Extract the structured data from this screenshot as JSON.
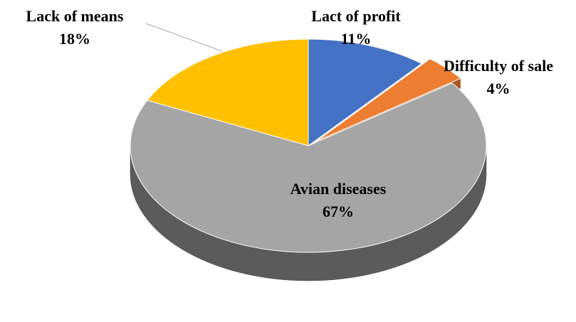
{
  "chart_data": {
    "type": "pie",
    "categories": [
      "Lact of profit",
      "Difficulty of sale",
      "Avian diseases",
      "Lack of means"
    ],
    "values": [
      11,
      4,
      67,
      18
    ],
    "value_labels": [
      "11%",
      "4%",
      "67%",
      "18%"
    ],
    "colors": [
      "#4472c4",
      "#ed7d31",
      "#a5a5a5",
      "#ffc000"
    ],
    "explode": [
      false,
      true,
      false,
      false
    ]
  }
}
